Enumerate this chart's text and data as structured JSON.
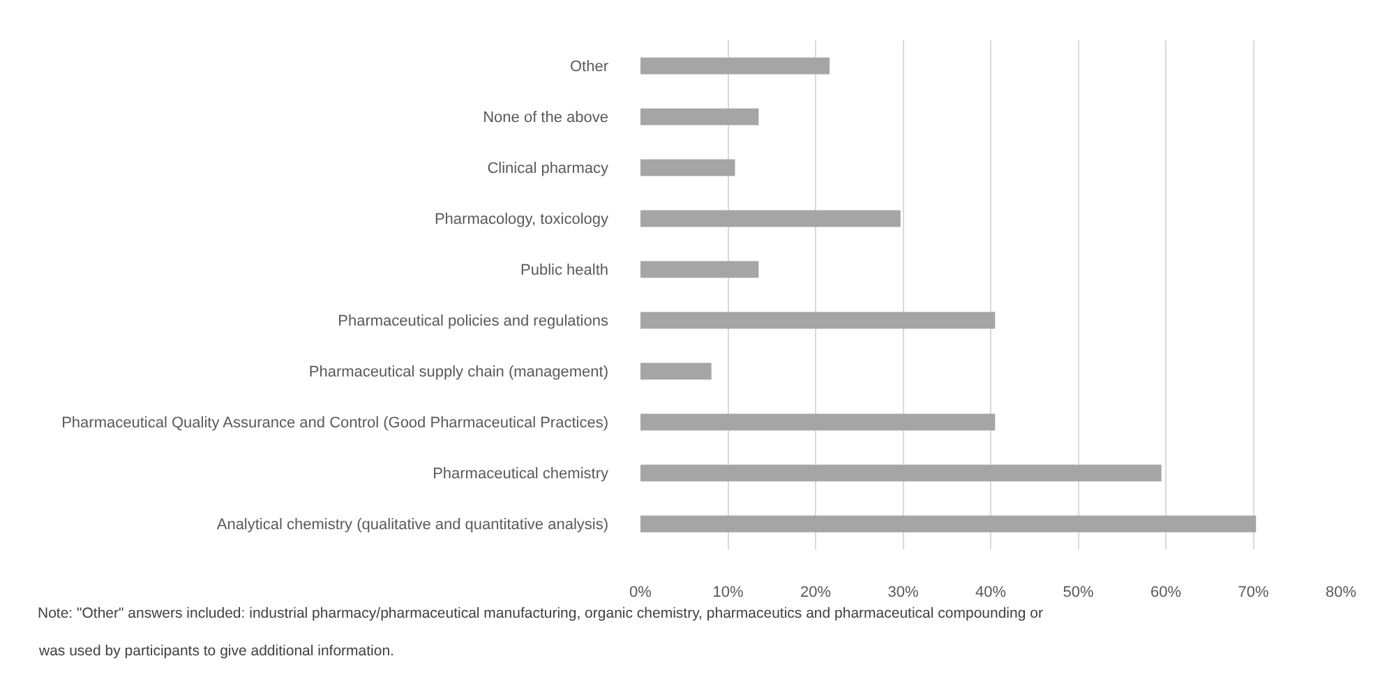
{
  "chart_data": {
    "type": "bar",
    "orientation": "horizontal",
    "categories": [
      "Other",
      "None of the above",
      "Clinical pharmacy",
      "Pharmacology, toxicology",
      "Public health",
      "Pharmaceutical policies and regulations",
      "Pharmaceutical supply chain (management)",
      "Pharmaceutical Quality Assurance and Control (Good Pharmaceutical Practices)",
      "Pharmaceutical chemistry",
      "Analytical chemistry (qualitative and quantitative analysis)"
    ],
    "values": [
      21.6,
      13.5,
      10.8,
      29.7,
      13.5,
      40.5,
      8.1,
      40.5,
      59.5,
      70.3
    ],
    "color": "#a5a5a5",
    "xlim": [
      0,
      80
    ],
    "xticks": [
      {
        "value": 0,
        "label": "0%"
      },
      {
        "value": 10,
        "label": "10%"
      },
      {
        "value": 20,
        "label": "20%"
      },
      {
        "value": 30,
        "label": "30%"
      },
      {
        "value": 40,
        "label": "40%"
      },
      {
        "value": 50,
        "label": "50%"
      },
      {
        "value": 60,
        "label": "60%"
      },
      {
        "value": 70,
        "label": "70%"
      },
      {
        "value": 80,
        "label": "80%"
      }
    ],
    "grid": "x",
    "annotations": [
      "Note: \"Other\" answers included: industrial pharmacy/pharmaceutical manufacturing, organic chemistry, pharmaceutics and pharmaceutical compounding or\nwas used by participants to give additional information."
    ]
  }
}
